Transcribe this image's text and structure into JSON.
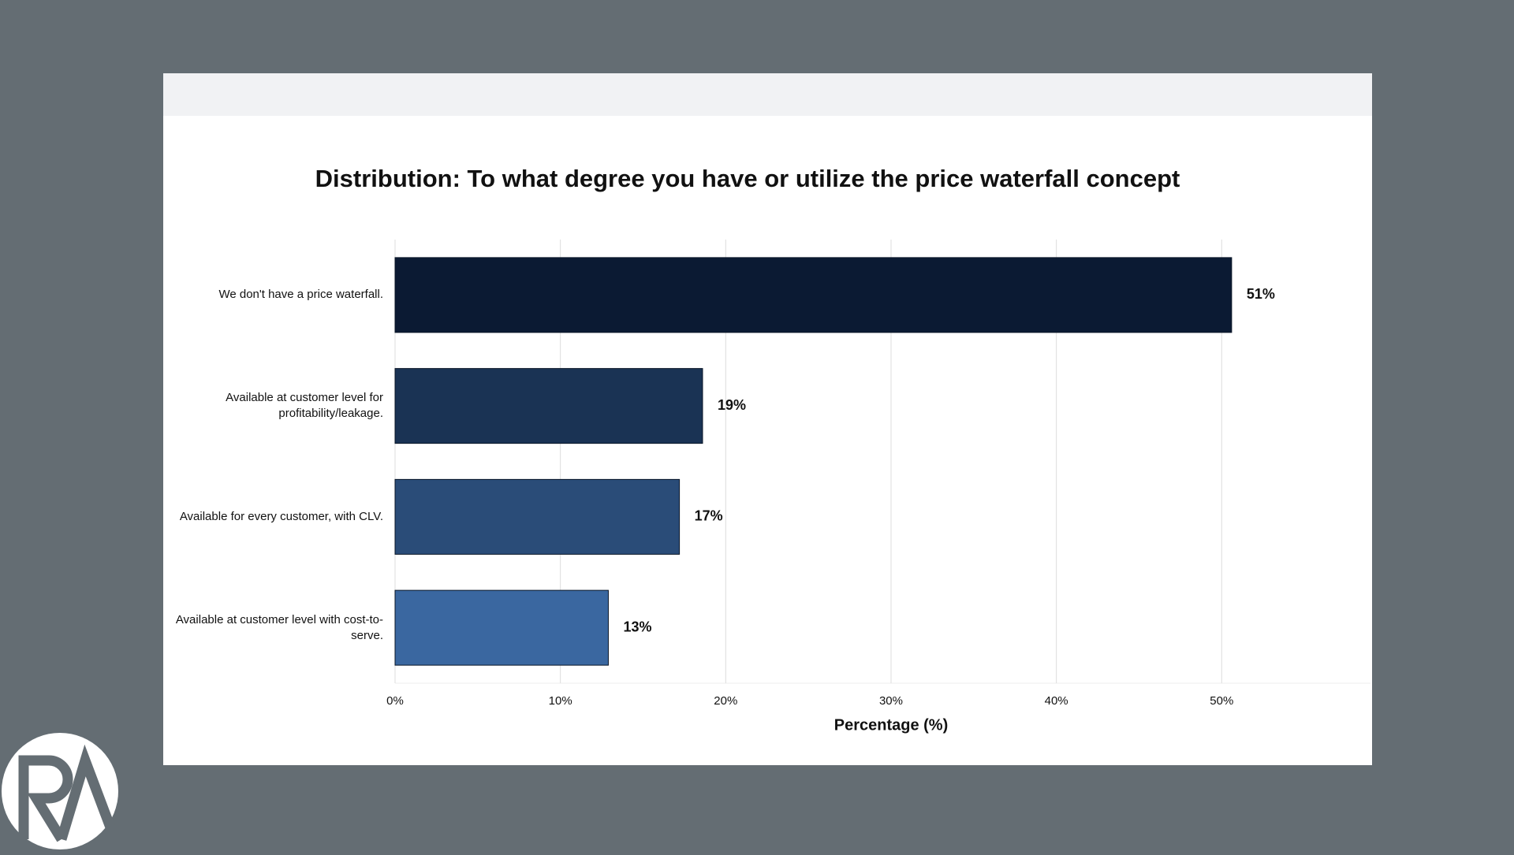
{
  "chart_data": {
    "type": "hbar",
    "title": "Distribution: To what degree you have or utilize the price waterfall concept",
    "x_label": "Percentage (%)",
    "categories": [
      "We don't have a price waterfall.",
      "Available at customer level for profitability/leakage.",
      "Available for every customer, with CLV.",
      "Available at customer level with cost-to-serve."
    ],
    "values": [
      50.6,
      18.6,
      17.2,
      12.9
    ],
    "value_labels": [
      "51%",
      "19%",
      "17%",
      "13%"
    ],
    "colors": [
      "#0b1a33",
      "#1a3354",
      "#2a4c78",
      "#3a67a0"
    ],
    "xlim": [
      0,
      59
    ],
    "xticks": [
      {
        "value": 0,
        "label": "0%"
      },
      {
        "value": 10,
        "label": "10%"
      },
      {
        "value": 20,
        "label": "20%"
      },
      {
        "value": 30,
        "label": "30%"
      },
      {
        "value": 40,
        "label": "40%"
      },
      {
        "value": 50,
        "label": "50%"
      }
    ],
    "grid": true
  }
}
